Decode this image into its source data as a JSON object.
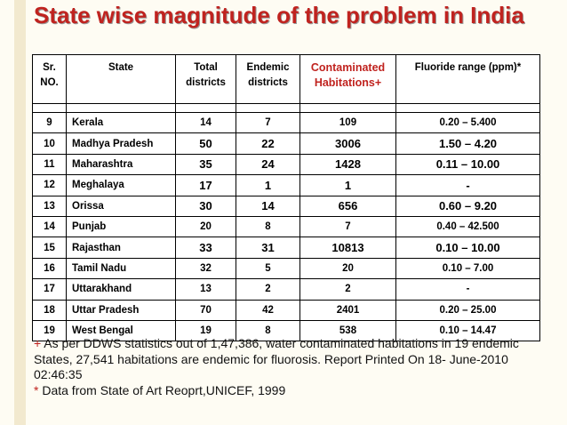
{
  "title": "State wise magnitude of the problem in India",
  "table": {
    "headers": {
      "sr_no": "Sr.\nNO.",
      "state": "State",
      "total_districts": "Total\ndistricts",
      "endemic_districts": "Endemic\ndistricts",
      "contaminated": "Contaminated\nHabitations+",
      "fluoride_range": "Fluoride range (ppm)*"
    },
    "rows": [
      {
        "sr": "9",
        "state": "Kerala",
        "total": "14",
        "endemic": "7",
        "contaminated": "109",
        "range": "0.20 – 5.400"
      },
      {
        "sr": "10",
        "state": "Madhya Pradesh",
        "total": "50",
        "endemic": "22",
        "contaminated": "3006",
        "range": "1.50 – 4.20"
      },
      {
        "sr": "11",
        "state": "Maharashtra",
        "total": "35",
        "endemic": "24",
        "contaminated": "1428",
        "range": "0.11 – 10.00"
      },
      {
        "sr": "12",
        "state": "Meghalaya",
        "total": "17",
        "endemic": "1",
        "contaminated": "1",
        "range": "-"
      },
      {
        "sr": "13",
        "state": "Orissa",
        "total": "30",
        "endemic": "14",
        "contaminated": "656",
        "range": "0.60 – 9.20"
      },
      {
        "sr": "14",
        "state": "Punjab",
        "total": "20",
        "endemic": "8",
        "contaminated": "7",
        "range": "0.40 – 42.500"
      },
      {
        "sr": "15",
        "state": "Rajasthan",
        "total": "33",
        "endemic": "31",
        "contaminated": "10813",
        "range": "0.10 – 10.00"
      },
      {
        "sr": "16",
        "state": "Tamil Nadu",
        "total": "32",
        "endemic": "5",
        "contaminated": "20",
        "range": "0.10 – 7.00"
      },
      {
        "sr": "17",
        "state": "Uttarakhand",
        "total": "13",
        "endemic": "2",
        "contaminated": "2",
        "range": "-"
      },
      {
        "sr": "18",
        "state": "Uttar Pradesh",
        "total": "70",
        "endemic": "42",
        "contaminated": "2401",
        "range": "0.20 – 25.00"
      },
      {
        "sr": "19",
        "state": "West Bengal",
        "total": "19",
        "endemic": "8",
        "contaminated": "538",
        "range": "0.10 – 14.47"
      }
    ]
  },
  "footnotes": {
    "plus_mark": "+",
    "plus_text": " As per DDWS statistics out of 1,47,386, water contaminated habitations in 19 endemic States, 27,541 habitations are endemic for fluorosis. Report Printed On 18- June-2010 02:46:35",
    "star_mark": "*",
    "star_text": " Data from State of Art Reoprt,UNICEF, 1999"
  },
  "colors": {
    "title": "#c0231f",
    "accent_header": "#c0231f",
    "background": "#fefcf3"
  }
}
